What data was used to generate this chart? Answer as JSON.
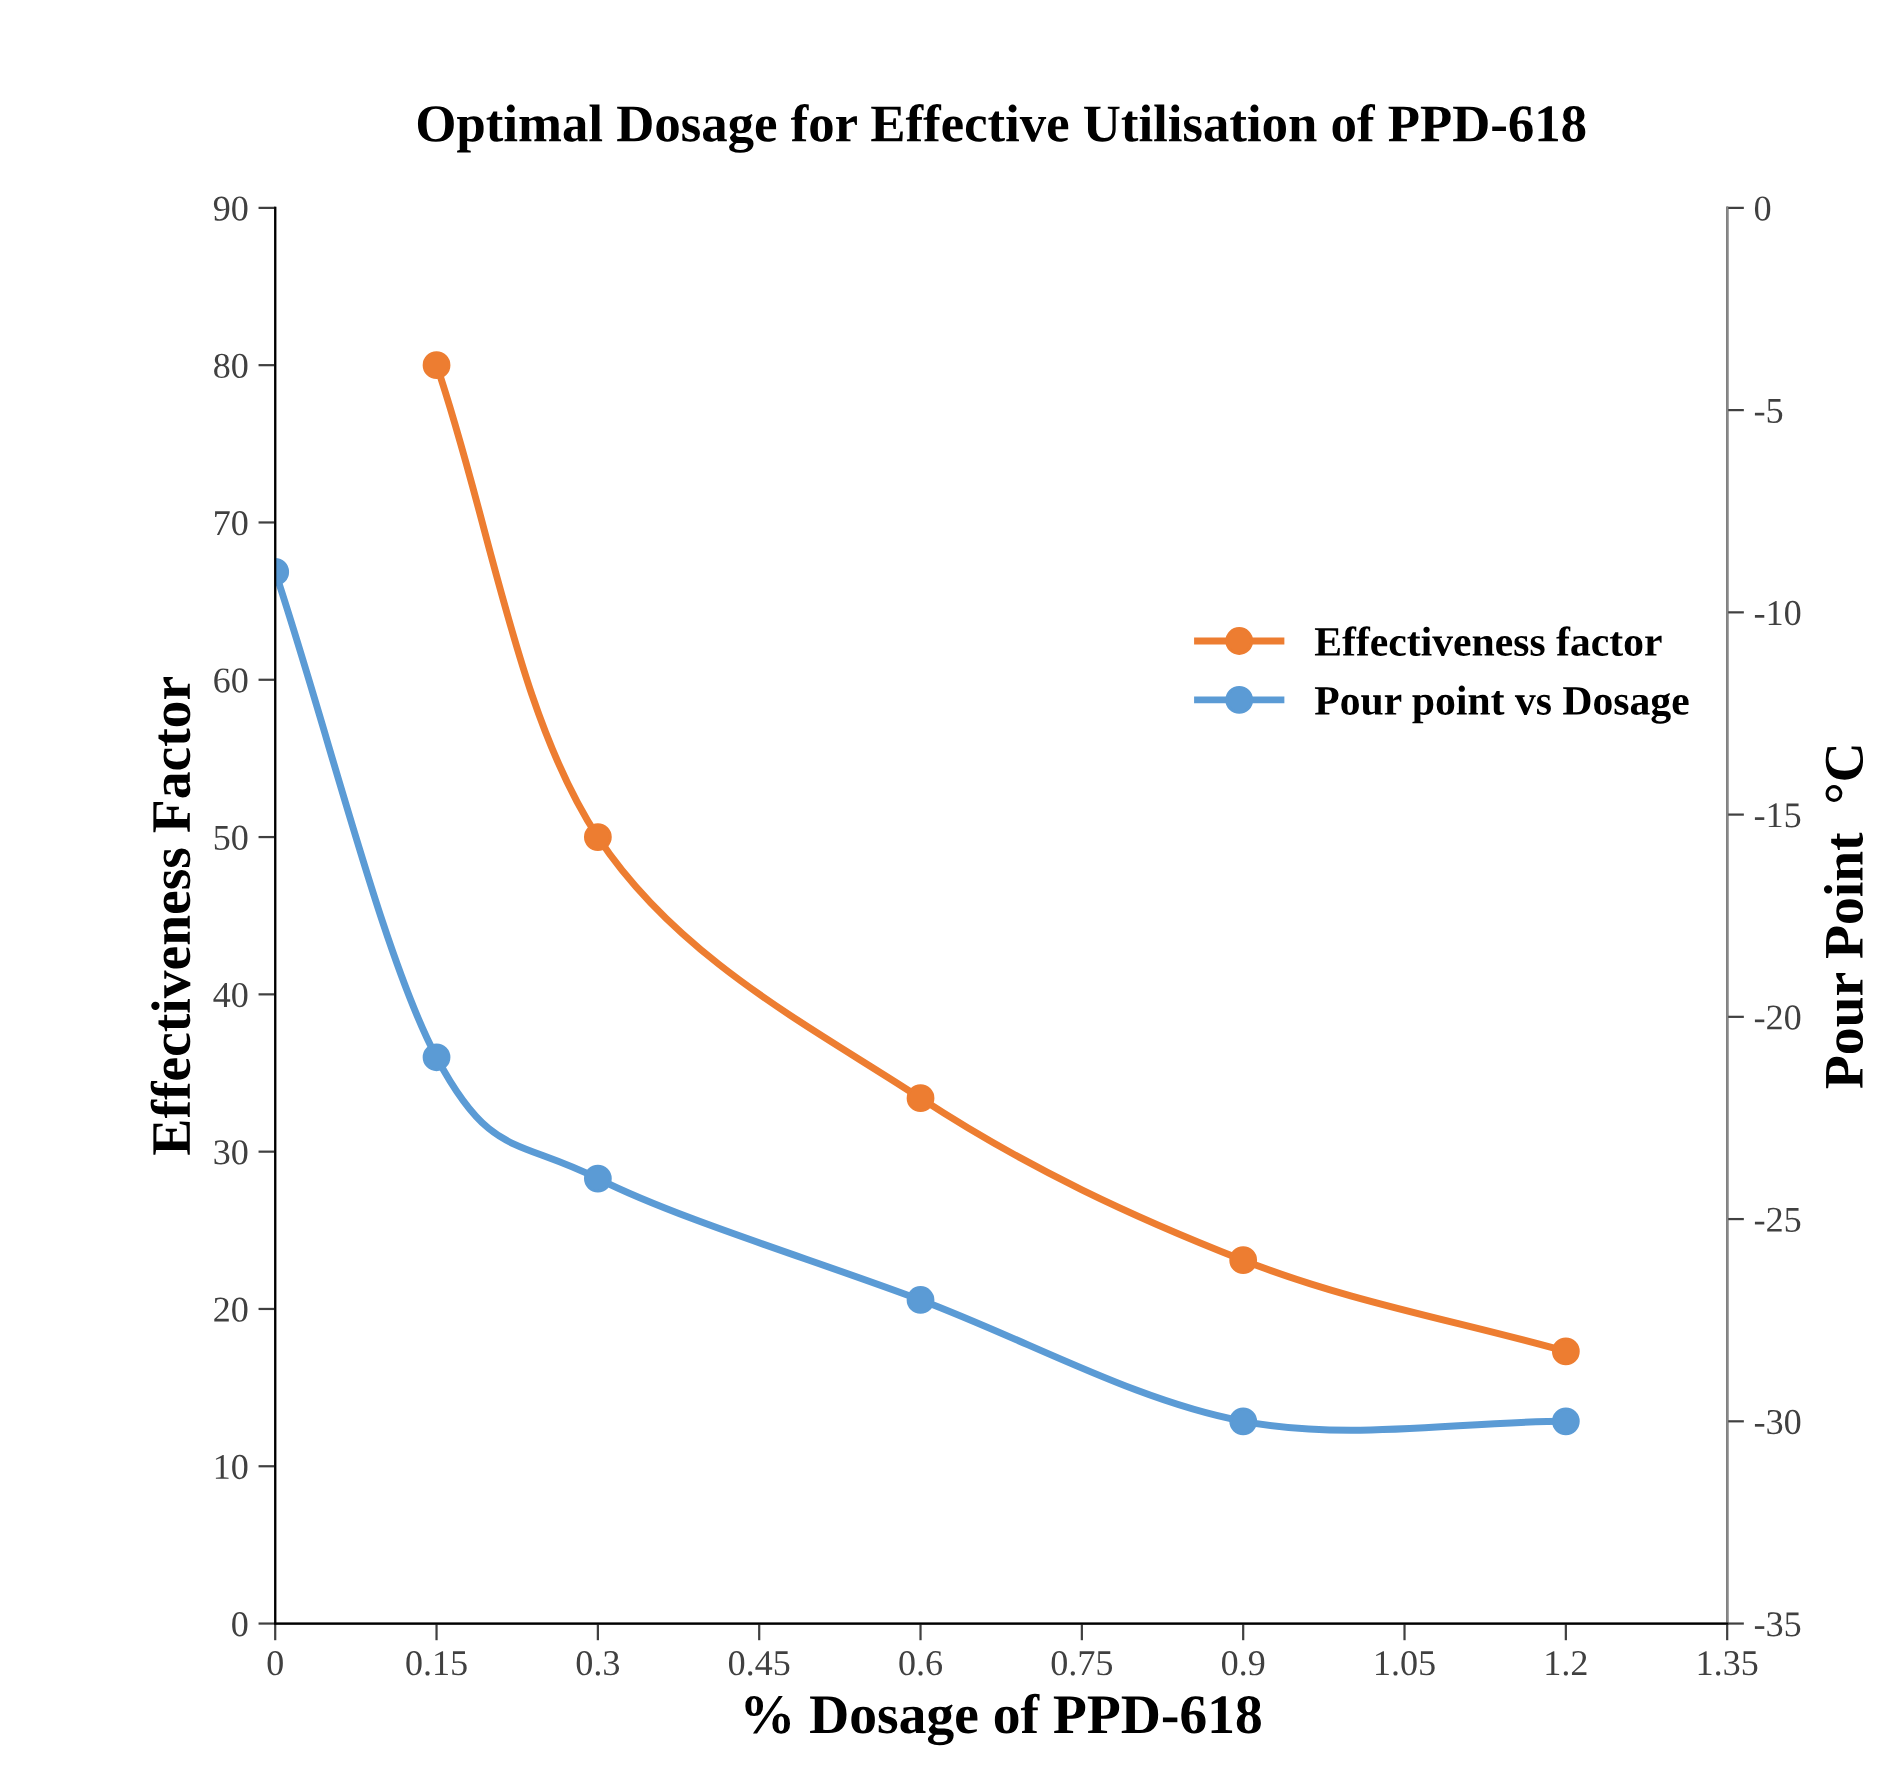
{
  "chart_data": {
    "type": "line",
    "title": "Optimal Dosage for Effective Utilisation of PPD-618",
    "xlabel": "% Dosage of PPD-618",
    "ylabel": "Effectiveness Factor",
    "y2label": "Pour Point  °C",
    "series": [
      {
        "name": "Effectiveness factor",
        "color": "#ed7d31",
        "x": [
          0.15,
          0.3,
          0.6,
          0.9,
          1.2
        ],
        "values": [
          80,
          50,
          33.4,
          23.1,
          17.3
        ]
      },
      {
        "name": "Pour point vs Dosage",
        "color": "#5b9bd5",
        "axis": "y2",
        "x": [
          0,
          0.15,
          0.3,
          0.6,
          0.9,
          1.2
        ],
        "values": [
          -9,
          -21,
          -24,
          -27,
          -30,
          -30
        ]
      }
    ],
    "xlim": [
      0,
      1.35
    ],
    "xticks": [
      0,
      0.15,
      0.3,
      0.45,
      0.6,
      0.75,
      0.9,
      1.05,
      1.2,
      1.35
    ],
    "ylim": [
      0,
      90
    ],
    "yticks": [
      0,
      10,
      20,
      30,
      40,
      50,
      60,
      70,
      80,
      90
    ],
    "y2lim": [
      -35,
      0
    ],
    "y2ticks": [
      -35,
      -30,
      -25,
      -20,
      -15,
      -10,
      -5,
      0
    ],
    "grid": false,
    "legend": "right",
    "marker": "circle",
    "line_style": "solid"
  }
}
